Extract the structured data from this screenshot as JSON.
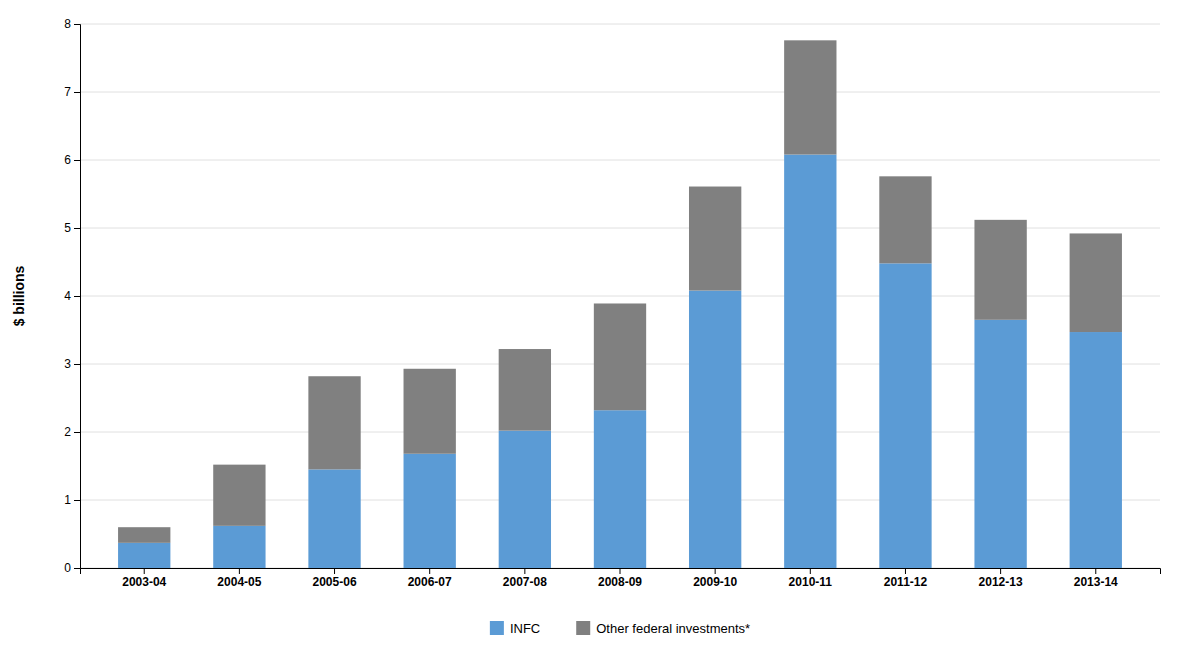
{
  "chart_data": {
    "type": "bar",
    "stacked": true,
    "categories": [
      "2003-04",
      "2004-05",
      "2005-06",
      "2006-07",
      "2007-08",
      "2008-09",
      "2009-10",
      "2010-11",
      "2011-12",
      "2012-13",
      "2013-14"
    ],
    "series": [
      {
        "name": "INFC",
        "color": "#5B9BD5",
        "values": [
          0.37,
          0.62,
          1.45,
          1.68,
          2.02,
          2.32,
          4.08,
          6.08,
          4.48,
          3.65,
          3.47
        ]
      },
      {
        "name": "Other federal investments*",
        "color": "#808080",
        "values": [
          0.23,
          0.9,
          1.37,
          1.25,
          1.2,
          1.57,
          1.53,
          1.68,
          1.28,
          1.47,
          1.45
        ]
      }
    ],
    "ylabel": "$ billions",
    "ylim": [
      0,
      8
    ],
    "yticks": [
      0,
      1,
      2,
      3,
      4,
      5,
      6,
      7,
      8
    ],
    "grid": true,
    "legend": "bottom"
  }
}
